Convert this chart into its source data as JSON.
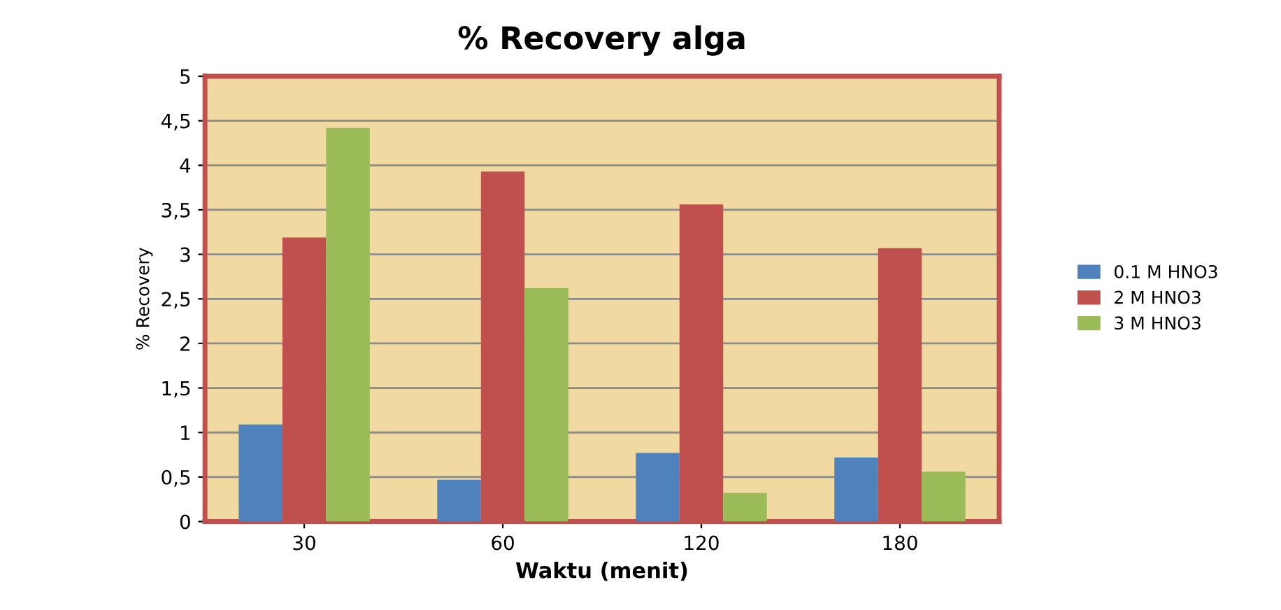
{
  "chart_data": {
    "type": "bar",
    "title": "% Recovery alga",
    "xlabel": "Waktu (menit)",
    "ylabel": "% Recovery",
    "categories": [
      "30",
      "60",
      "120",
      "180"
    ],
    "series": [
      {
        "name": "0.1 M HNO3",
        "color": "#4f81bd",
        "values": [
          1.09,
          0.47,
          0.77,
          0.72
        ]
      },
      {
        "name": "2 M HNO3",
        "color": "#c0504d",
        "values": [
          3.19,
          3.93,
          3.56,
          3.07
        ]
      },
      {
        "name": "3 M HNO3",
        "color": "#9bbb59",
        "values": [
          4.42,
          2.62,
          0.32,
          0.56
        ]
      }
    ],
    "ylim": [
      0,
      5
    ],
    "yticks": [
      0,
      {
        "value": 0.5,
        "label": "0,5"
      },
      1,
      {
        "value": 1.5,
        "label": "1,5"
      },
      2,
      {
        "value": 2.5,
        "label": "2,5"
      },
      3,
      {
        "value": 3.5,
        "label": "3,5"
      },
      4,
      {
        "value": 4.5,
        "label": "4,5"
      },
      5
    ],
    "grid": "y",
    "legend": "right"
  }
}
